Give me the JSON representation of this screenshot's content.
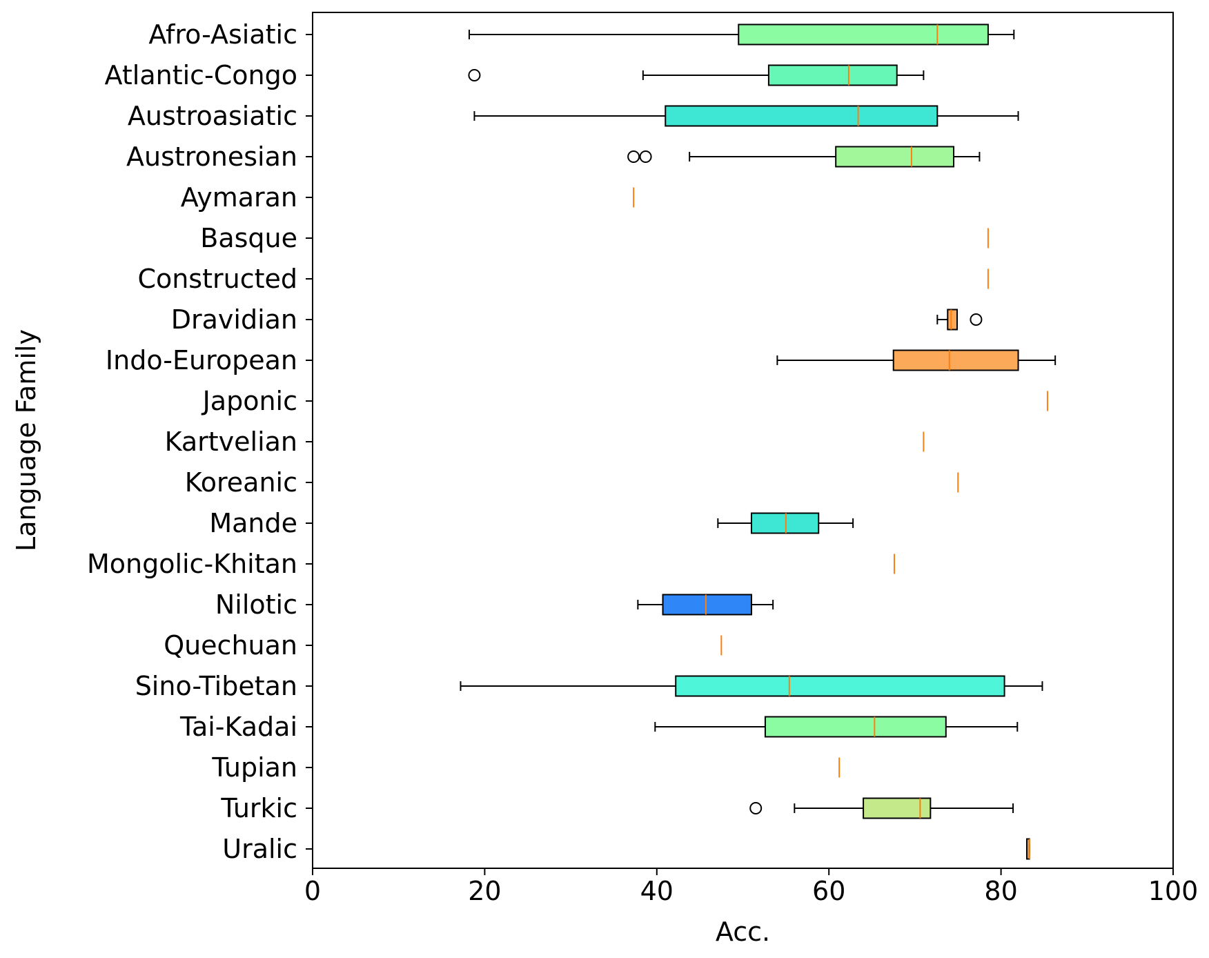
{
  "chart_data": {
    "type": "boxplot",
    "orientation": "horizontal",
    "title": "",
    "xlabel": "Acc.",
    "ylabel": "Language Family",
    "xlim": [
      0,
      100
    ],
    "xticks": [
      0,
      20,
      40,
      60,
      80,
      100
    ],
    "grid": false,
    "median_color": "#ff7f0e",
    "categories": [
      {
        "name": "Afro-Asiatic",
        "whislo": 18.2,
        "q1": 49.5,
        "med": 72.6,
        "q3": 78.5,
        "whishi": 81.5,
        "fliers": [],
        "color": "#8cfca2"
      },
      {
        "name": "Atlantic-Congo",
        "whislo": 38.4,
        "q1": 53.0,
        "med": 62.3,
        "q3": 67.9,
        "whishi": 71.0,
        "fliers": [
          18.8
        ],
        "color": "#66f7b6"
      },
      {
        "name": "Austroasiatic",
        "whislo": 18.8,
        "q1": 41.0,
        "med": 63.4,
        "q3": 72.6,
        "whishi": 82.0,
        "fliers": [],
        "color": "#3ee6d4"
      },
      {
        "name": "Austronesian",
        "whislo": 43.8,
        "q1": 60.8,
        "med": 69.6,
        "q3": 74.5,
        "whishi": 77.5,
        "fliers": [
          37.3,
          38.7
        ],
        "color": "#a2f79a"
      },
      {
        "name": "Aymaran",
        "whislo": 37.3,
        "q1": 37.3,
        "med": 37.3,
        "q3": 37.3,
        "whishi": 37.3,
        "fliers": [],
        "color": "#8cfca2"
      },
      {
        "name": "Basque",
        "whislo": 78.5,
        "q1": 78.5,
        "med": 78.5,
        "q3": 78.5,
        "whishi": 78.5,
        "fliers": [],
        "color": "#fca95a"
      },
      {
        "name": "Constructed",
        "whislo": 78.5,
        "q1": 78.5,
        "med": 78.5,
        "q3": 78.5,
        "whishi": 78.5,
        "fliers": [],
        "color": "#fca95a"
      },
      {
        "name": "Dravidian",
        "whislo": 72.6,
        "q1": 73.8,
        "med": 74.2,
        "q3": 74.9,
        "whishi": 74.9,
        "fliers": [
          77.1
        ],
        "color": "#fca95a"
      },
      {
        "name": "Indo-European",
        "whislo": 54.0,
        "q1": 67.5,
        "med": 74.0,
        "q3": 82.0,
        "whishi": 86.3,
        "fliers": [],
        "color": "#fca95a"
      },
      {
        "name": "Japonic",
        "whislo": 85.4,
        "q1": 85.4,
        "med": 85.4,
        "q3": 85.4,
        "whishi": 85.4,
        "fliers": [],
        "color": "#fca95a"
      },
      {
        "name": "Kartvelian",
        "whislo": 71.0,
        "q1": 71.0,
        "med": 71.0,
        "q3": 71.0,
        "whishi": 71.0,
        "fliers": [],
        "color": "#fca95a"
      },
      {
        "name": "Koreanic",
        "whislo": 75.0,
        "q1": 75.0,
        "med": 75.0,
        "q3": 75.0,
        "whishi": 75.0,
        "fliers": [],
        "color": "#fca95a"
      },
      {
        "name": "Mande",
        "whislo": 47.1,
        "q1": 51.0,
        "med": 55.0,
        "q3": 58.8,
        "whishi": 62.8,
        "fliers": [],
        "color": "#3ee6d4"
      },
      {
        "name": "Mongolic-Khitan",
        "whislo": 67.6,
        "q1": 67.6,
        "med": 67.6,
        "q3": 67.6,
        "whishi": 67.6,
        "fliers": [],
        "color": "#fca95a"
      },
      {
        "name": "Nilotic",
        "whislo": 37.8,
        "q1": 40.7,
        "med": 45.7,
        "q3": 51.0,
        "whishi": 53.5,
        "fliers": [],
        "color": "#2e86f7"
      },
      {
        "name": "Quechuan",
        "whislo": 47.5,
        "q1": 47.5,
        "med": 47.5,
        "q3": 47.5,
        "whishi": 47.5,
        "fliers": [],
        "color": "#3ee6d4"
      },
      {
        "name": "Sino-Tibetan",
        "whislo": 17.2,
        "q1": 42.2,
        "med": 55.4,
        "q3": 80.4,
        "whishi": 84.8,
        "fliers": [],
        "color": "#4ef5d8"
      },
      {
        "name": "Tai-Kadai",
        "whislo": 39.8,
        "q1": 52.6,
        "med": 65.3,
        "q3": 73.6,
        "whishi": 81.9,
        "fliers": [],
        "color": "#8cfca2"
      },
      {
        "name": "Tupian",
        "whislo": 61.2,
        "q1": 61.2,
        "med": 61.2,
        "q3": 61.2,
        "whishi": 61.2,
        "fliers": [],
        "color": "#8cfca2"
      },
      {
        "name": "Turkic",
        "whislo": 56.0,
        "q1": 64.0,
        "med": 70.6,
        "q3": 71.8,
        "whishi": 81.4,
        "fliers": [
          51.5
        ],
        "color": "#c4e98a"
      },
      {
        "name": "Uralic",
        "whislo": 83.0,
        "q1": 83.0,
        "med": 83.3,
        "q3": 83.3,
        "whishi": 83.3,
        "fliers": [],
        "color": "#fca95a"
      }
    ]
  }
}
